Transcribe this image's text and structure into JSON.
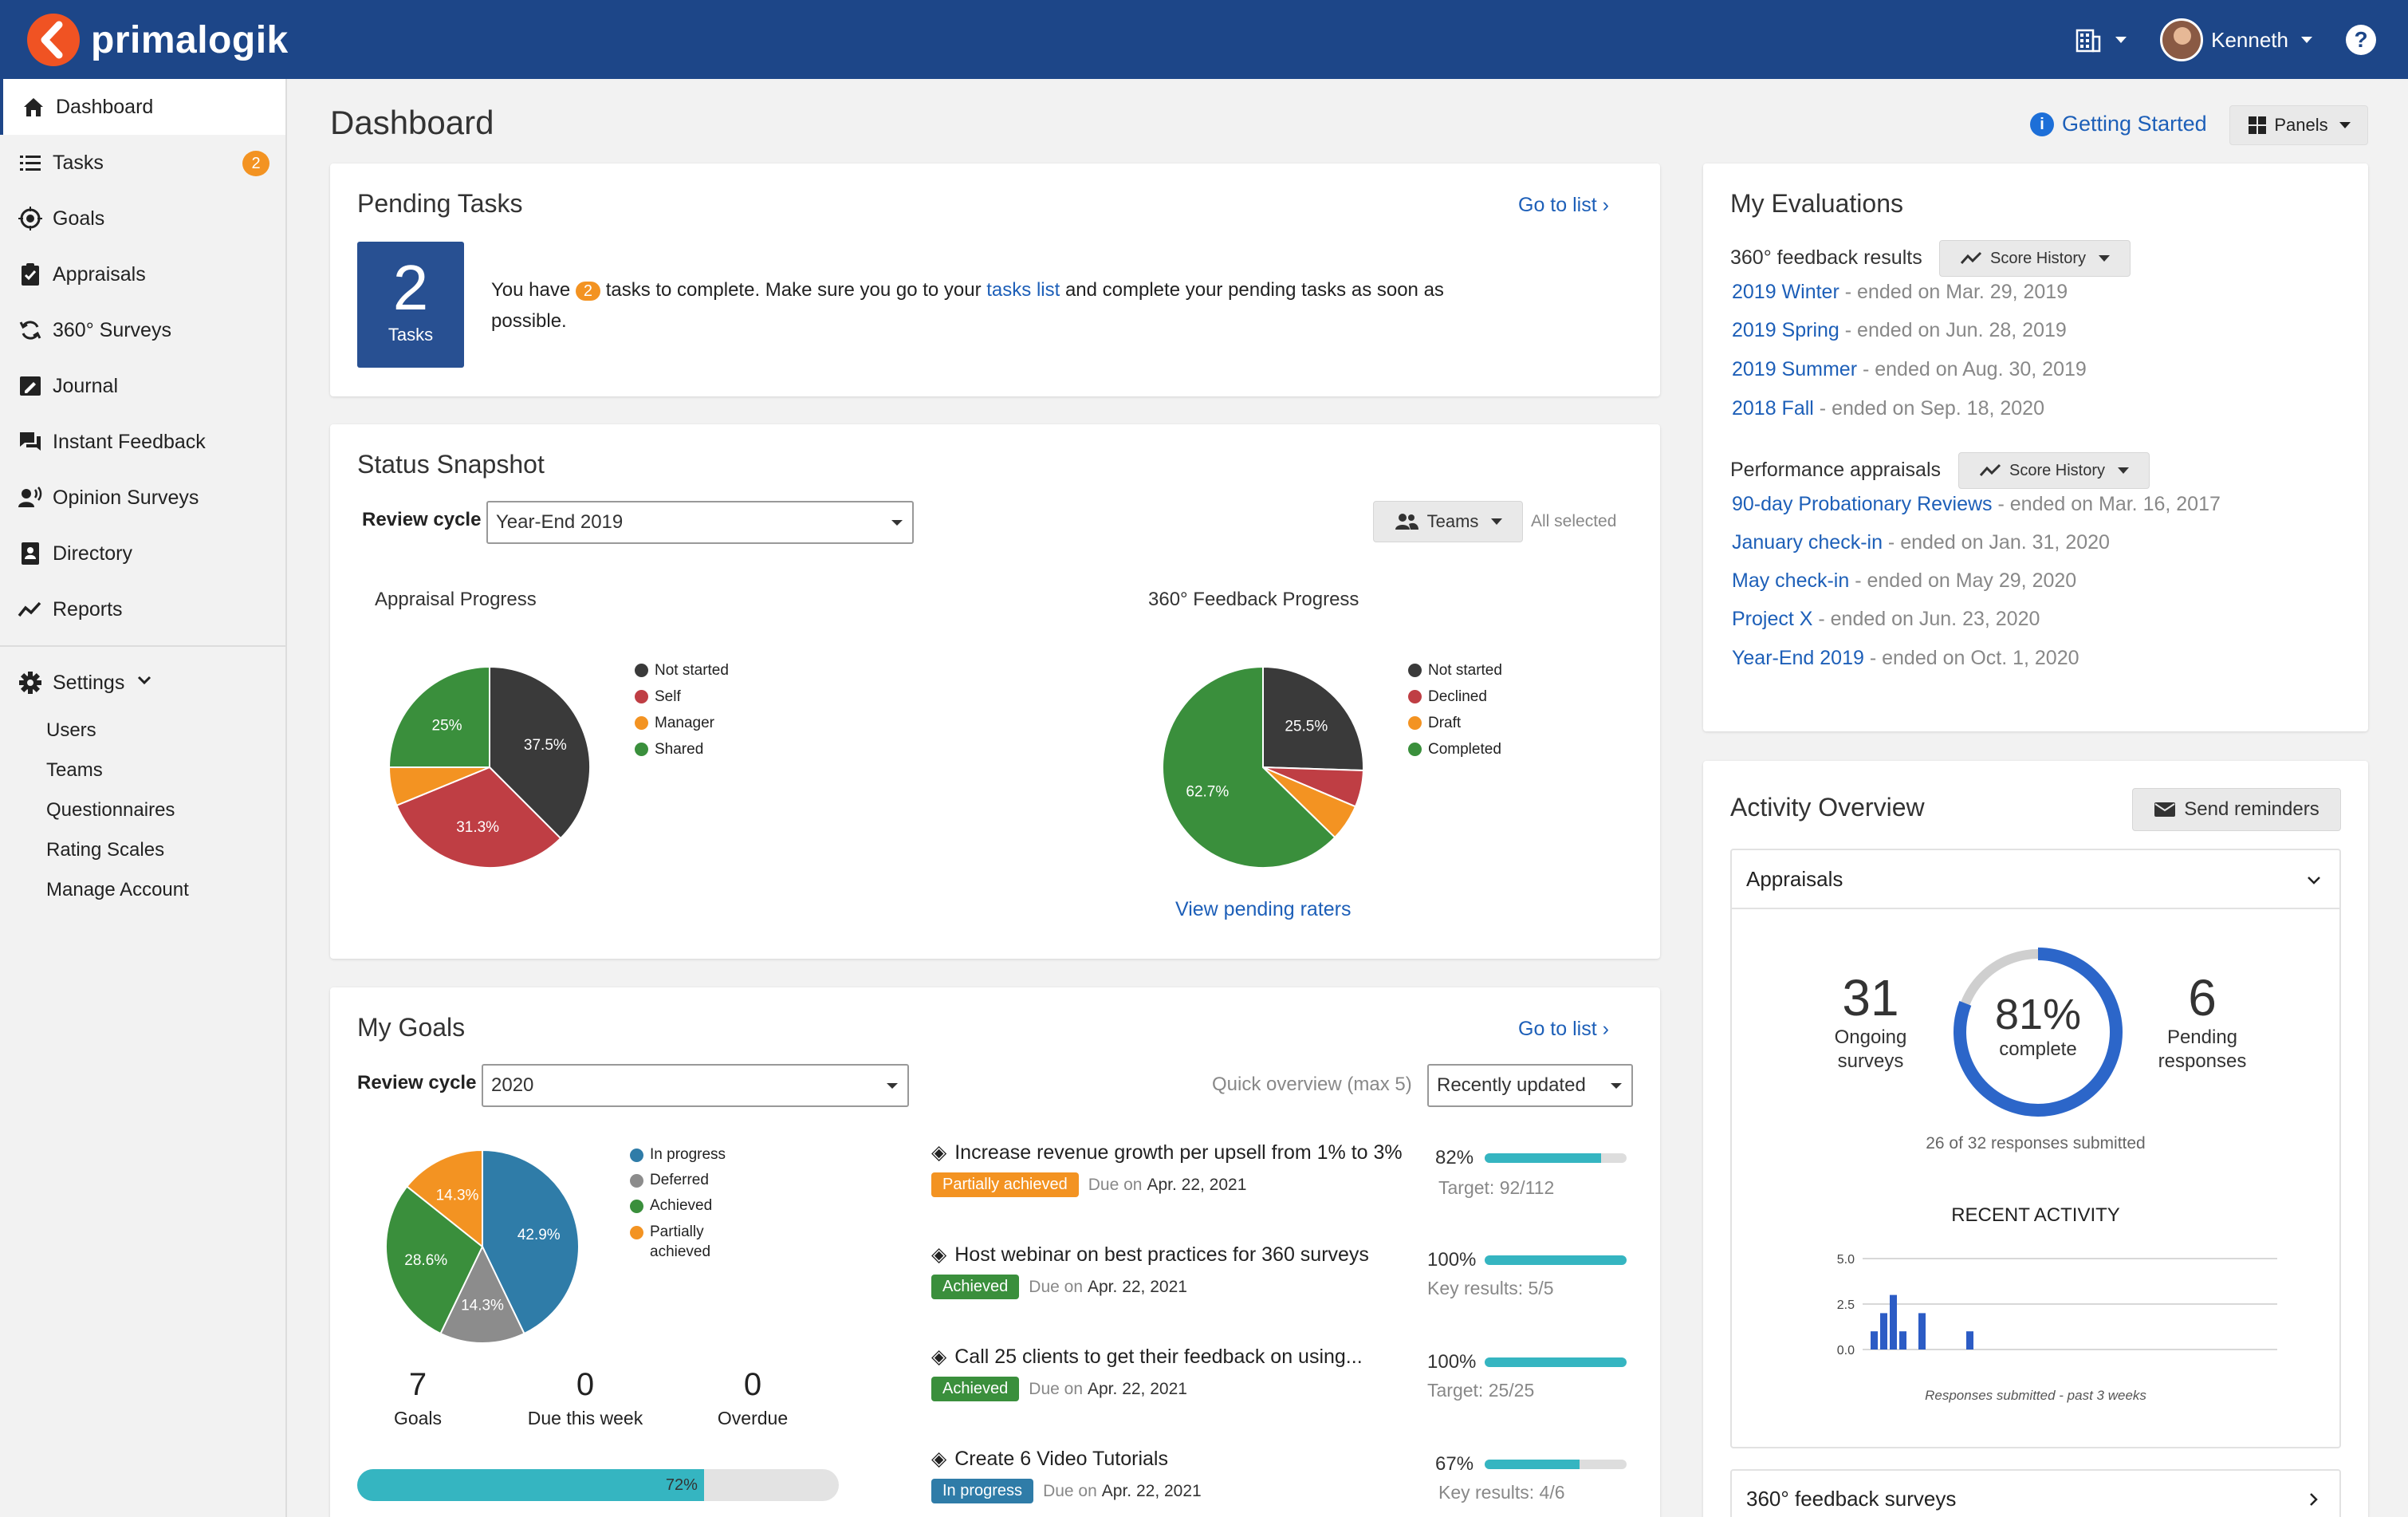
{
  "app": {
    "name": "primalogik",
    "user": "Kenneth",
    "help": "?"
  },
  "sidebar": {
    "items": [
      {
        "label": "Dashboard"
      },
      {
        "label": "Tasks",
        "badge": "2"
      },
      {
        "label": "Goals"
      },
      {
        "label": "Appraisals"
      },
      {
        "label": "360° Surveys"
      },
      {
        "label": "Journal"
      },
      {
        "label": "Instant Feedback"
      },
      {
        "label": "Opinion Surveys"
      },
      {
        "label": "Directory"
      },
      {
        "label": "Reports"
      }
    ],
    "settings": {
      "label": "Settings",
      "sub": [
        "Users",
        "Teams",
        "Questionnaires",
        "Rating Scales",
        "Manage Account"
      ]
    }
  },
  "header": {
    "title": "Dashboard",
    "getting_started": "Getting Started",
    "panels": "Panels"
  },
  "pending_tasks": {
    "title": "Pending Tasks",
    "go_to_list": "Go to list",
    "count": "2",
    "count_label": "Tasks",
    "text_prefix": "You have",
    "badge": "2",
    "text_mid": "tasks to complete. Make sure you go to your",
    "link": "tasks list",
    "text_suffix": "and complete your pending tasks as soon as",
    "text_line2": "possible."
  },
  "status_snapshot": {
    "title": "Status Snapshot",
    "review_cycle_label": "Review cycle",
    "review_cycle_value": "Year-End 2019",
    "teams_button": "Teams",
    "teams_selected": "All selected",
    "appraisal": {
      "title": "Appraisal Progress",
      "legend": [
        "Not started",
        "Self",
        "Manager",
        "Shared"
      ],
      "labels": [
        "37.5%",
        "31.3%",
        "25%"
      ]
    },
    "feedback": {
      "title": "360° Feedback Progress",
      "legend": [
        "Not started",
        "Declined",
        "Draft",
        "Completed"
      ],
      "labels": [
        "25.5%",
        "62.7%"
      ],
      "link": "View pending raters"
    }
  },
  "my_goals": {
    "title": "My Goals",
    "go_to_list": "Go to list",
    "review_cycle_label": "Review cycle",
    "review_cycle_value": "2020",
    "quick_overview": "Quick overview (max 5)",
    "sort_value": "Recently updated",
    "legend": [
      "In progress",
      "Deferred",
      "Achieved",
      "Partially",
      "achieved"
    ],
    "pie_labels": [
      "42.9%",
      "14.3%",
      "28.6%",
      "14.3%"
    ],
    "stats": [
      {
        "value": "7",
        "label": "Goals"
      },
      {
        "value": "0",
        "label": "Due this week"
      },
      {
        "value": "0",
        "label": "Overdue"
      }
    ],
    "progress_label": "72%",
    "due_word": "Due on",
    "goals": [
      {
        "title": "Increase revenue growth per upsell from 1% to 3%",
        "status": "Partially achieved",
        "due": "Apr. 22, 2021",
        "pct": "82%",
        "sub": "Target: 92/112"
      },
      {
        "title": "Host webinar on best practices for 360 surveys",
        "status": "Achieved",
        "due": "Apr. 22, 2021",
        "pct": "100%",
        "sub": "Key results: 5/5"
      },
      {
        "title": "Call 25 clients to get their feedback on using...",
        "status": "Achieved",
        "due": "Apr. 22, 2021",
        "pct": "100%",
        "sub": "Target: 25/25"
      },
      {
        "title": "Create 6 Video Tutorials",
        "status": "In progress",
        "due": "Apr. 22, 2021",
        "pct": "67%",
        "sub": "Key results: 4/6"
      }
    ]
  },
  "my_evaluations": {
    "title": "My Evaluations",
    "feedback_label": "360° feedback results",
    "score_history": "Score History",
    "feedback_items": [
      {
        "name": "2019 Winter",
        "rest": " - ended on Mar. 29, 2019"
      },
      {
        "name": "2019 Spring",
        "rest": " - ended on Jun. 28, 2019"
      },
      {
        "name": "2019 Summer",
        "rest": " - ended on Aug. 30, 2019"
      },
      {
        "name": "2018 Fall",
        "rest": " - ended on Sep. 18, 2020"
      }
    ],
    "appraisals_label": "Performance appraisals",
    "appraisal_items": [
      {
        "name": "90-day Probationary Reviews",
        "rest": " - ended on Mar. 16, 2017"
      },
      {
        "name": "January check-in",
        "rest": " - ended on Jan. 31, 2020"
      },
      {
        "name": "May check-in",
        "rest": " - ended on May 29, 2020"
      },
      {
        "name": "Project X",
        "rest": " - ended on Jun. 23, 2020"
      },
      {
        "name": "Year-End 2019",
        "rest": " - ended on Oct. 1, 2020"
      }
    ]
  },
  "activity": {
    "title": "Activity Overview",
    "send_reminders": "Send reminders",
    "appraisals_tab": "Appraisals",
    "ongoing_value": "31",
    "ongoing_label1": "Ongoing",
    "ongoing_label2": "surveys",
    "complete_pct": "81%",
    "complete_label": "complete",
    "pending_value": "6",
    "pending_label1": "Pending",
    "pending_label2": "responses",
    "submitted": "26 of 32 responses submitted",
    "recent_activity": "RECENT ACTIVITY",
    "y_ticks": [
      "5.0",
      "2.5",
      "0.0"
    ],
    "caption": "Responses submitted - past 3 weeks",
    "feedback_tab": "360° feedback surveys"
  },
  "chart_data": [
    {
      "type": "pie",
      "title": "Appraisal Progress",
      "categories": [
        "Not started",
        "Self",
        "Manager",
        "Shared"
      ],
      "values": [
        37.5,
        31.3,
        6.2,
        25
      ],
      "colors": [
        "#3a3a3a",
        "#bf3e44",
        "#f39322",
        "#3a8f3c"
      ]
    },
    {
      "type": "pie",
      "title": "360° Feedback Progress",
      "categories": [
        "Not started",
        "Declined",
        "Draft",
        "Completed"
      ],
      "values": [
        25.5,
        5.9,
        5.9,
        62.7
      ],
      "colors": [
        "#3a3a3a",
        "#bf3e44",
        "#f39322",
        "#3a8f3c"
      ]
    },
    {
      "type": "pie",
      "title": "My Goals",
      "categories": [
        "In progress",
        "Deferred",
        "Achieved",
        "Partially achieved"
      ],
      "values": [
        42.9,
        14.3,
        28.6,
        14.3
      ],
      "colors": [
        "#2f7ca8",
        "#8c8c8c",
        "#3a8f3c",
        "#f39322"
      ]
    },
    {
      "type": "bar",
      "title": "RECENT ACTIVITY",
      "xlabel": "Responses submitted - past 3 weeks",
      "ylim": [
        0,
        5
      ],
      "y_ticks": [
        0,
        2.5,
        5
      ],
      "values": [
        1,
        2,
        3,
        1,
        0,
        2,
        0,
        0,
        0,
        0,
        1
      ],
      "color": "#2c5cc5"
    }
  ],
  "donut": {
    "value": 81,
    "color": "#2c66c9",
    "track": "#cfcfcf"
  }
}
